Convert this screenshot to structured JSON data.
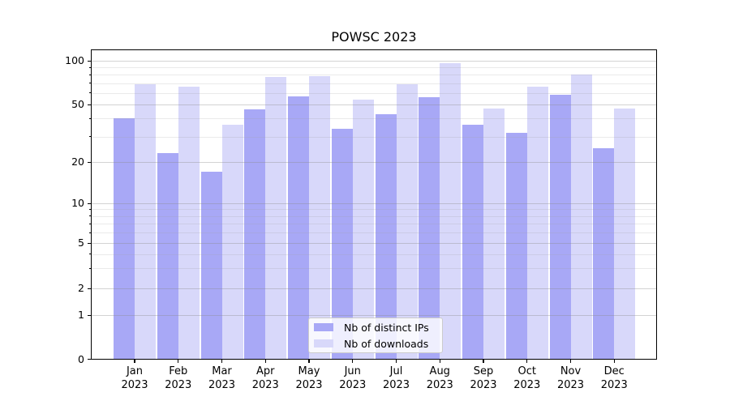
{
  "chart_data": {
    "type": "bar",
    "title": "POWSC 2023",
    "categories": [
      "Jan",
      "Feb",
      "Mar",
      "Apr",
      "May",
      "Jun",
      "Jul",
      "Aug",
      "Sep",
      "Oct",
      "Nov",
      "Dec"
    ],
    "category_year": "2023",
    "series": [
      {
        "name": "Nb of distinct IPs",
        "color": "#a8a8f6",
        "values": [
          40,
          23,
          17,
          46,
          57,
          34,
          43,
          56,
          36,
          32,
          58,
          25
        ]
      },
      {
        "name": "Nb of downloads",
        "color": "#d8d8fa",
        "values": [
          69,
          66,
          36,
          77,
          78,
          54,
          69,
          96,
          47,
          66,
          80,
          47
        ]
      }
    ],
    "xlabel": "",
    "ylabel": "",
    "yscale": "symlog",
    "ylim": [
      0,
      120
    ],
    "yticks": [
      0,
      1,
      2,
      5,
      10,
      20,
      50,
      100
    ],
    "minor_yticks": [
      3,
      4,
      6,
      7,
      8,
      9,
      30,
      40,
      60,
      70,
      80,
      90
    ],
    "grid": true,
    "legend_position": "lower center",
    "axis_color": "#000000"
  }
}
